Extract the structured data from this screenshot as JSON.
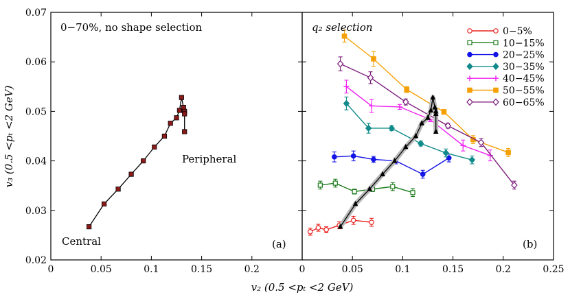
{
  "chart_data": [
    {
      "panel": "a",
      "type": "line",
      "panel_label": "(a)",
      "annotation": "0−70%, no shape selection",
      "text_labels": {
        "peripheral": "Peripheral",
        "central": "Central"
      },
      "xlim": [
        0,
        0.25
      ],
      "ylim": [
        0.02,
        0.07
      ],
      "series": [
        {
          "name": "no shape selection",
          "color": "#000000",
          "marker_color": "#8b1a1a",
          "x": [
            0.038,
            0.053,
            0.067,
            0.08,
            0.092,
            0.103,
            0.113,
            0.119,
            0.125,
            0.128,
            0.13,
            0.132,
            0.133,
            0.133,
            0.133
          ],
          "y": [
            0.0267,
            0.0313,
            0.0343,
            0.0373,
            0.04,
            0.0428,
            0.045,
            0.0476,
            0.0487,
            0.0502,
            0.0528,
            0.0508,
            0.05,
            0.0495,
            0.0459
          ]
        }
      ]
    },
    {
      "panel": "b",
      "type": "line",
      "panel_label": "(b)",
      "annotation": "q₂ selection",
      "xlim": [
        0,
        0.25
      ],
      "ylim": [
        0.02,
        0.07
      ],
      "xlabel": "v₂  (0.5 <pₜ <2 GeV)",
      "ylabel": "v₃  (0.5 <pₜ <2 GeV)",
      "x_ticks": [
        "0",
        "0.05",
        "0.1",
        "0.15",
        "0.2",
        "0.25"
      ],
      "y_ticks": [
        "0.02",
        "0.03",
        "0.04",
        "0.05",
        "0.06",
        "0.07"
      ],
      "legend_position": "top-right",
      "series": [
        {
          "name": "0−5%",
          "color": "#e8231f",
          "marker": "circle-open",
          "x": [
            0.008,
            0.016,
            0.024,
            0.037,
            0.051,
            0.069
          ],
          "y": [
            0.0257,
            0.0265,
            0.0261,
            0.027,
            0.028,
            0.0276
          ],
          "err": [
            0.0007,
            0.0007,
            0.0006,
            0.0007,
            0.0008,
            0.0008
          ]
        },
        {
          "name": "10−15%",
          "color": "#1a7a1a",
          "marker": "square-open",
          "x": [
            0.018,
            0.033,
            0.052,
            0.07,
            0.09,
            0.11
          ],
          "y": [
            0.0351,
            0.0355,
            0.0338,
            0.0343,
            0.0348,
            0.0336
          ],
          "err": [
            0.0008,
            0.0008,
            0.0005,
            0.0005,
            0.0008,
            0.0008
          ]
        },
        {
          "name": "20−25%",
          "color": "#1414e6",
          "marker": "circle-filled",
          "x": [
            0.032,
            0.051,
            0.071,
            0.093,
            0.12,
            0.146
          ],
          "y": [
            0.0408,
            0.041,
            0.0403,
            0.04,
            0.0373,
            0.0406
          ],
          "err": [
            0.001,
            0.001,
            0.0006,
            0.0006,
            0.0008,
            0.0008
          ]
        },
        {
          "name": "30−35%",
          "color": "#108a8a",
          "marker": "diamond-filled",
          "x": [
            0.044,
            0.066,
            0.089,
            0.118,
            0.143,
            0.169
          ],
          "y": [
            0.0516,
            0.0466,
            0.0466,
            0.0435,
            0.0416,
            0.0402
          ],
          "err": [
            0.0013,
            0.001,
            0.0005,
            0.0005,
            0.0008,
            0.0008
          ]
        },
        {
          "name": "40−45%",
          "color": "#f020f0",
          "marker": "plus",
          "x": [
            0.044,
            0.069,
            0.097,
            0.127,
            0.16,
            0.187
          ],
          "y": [
            0.055,
            0.0511,
            0.0509,
            0.0484,
            0.0431,
            0.0411
          ],
          "err": [
            0.0013,
            0.0013,
            0.0005,
            0.0005,
            0.0011,
            0.0011
          ]
        },
        {
          "name": "50−55%",
          "color": "#f5a006",
          "marker": "square-filled",
          "x": [
            0.042,
            0.071,
            0.104,
            0.141,
            0.17,
            0.205
          ],
          "y": [
            0.0652,
            0.0606,
            0.0544,
            0.0499,
            0.0443,
            0.0417
          ],
          "err": [
            0.0012,
            0.0015,
            0.0006,
            0.0005,
            0.0008,
            0.0008
          ]
        },
        {
          "name": "60−65%",
          "color": "#7b1c7b",
          "marker": "diamond-open",
          "x": [
            0.038,
            0.068,
            0.103,
            0.145,
            0.178,
            0.211
          ],
          "y": [
            0.0596,
            0.0568,
            0.0519,
            0.0471,
            0.0437,
            0.0351
          ],
          "err": [
            0.0014,
            0.0012,
            0.0006,
            0.0005,
            0.0008,
            0.0008
          ]
        },
        {
          "name": "no shape selection (overlay)",
          "color": "#000000",
          "marker": "triangle-filled",
          "band": true,
          "x": [
            0.038,
            0.053,
            0.067,
            0.08,
            0.092,
            0.103,
            0.113,
            0.119,
            0.125,
            0.128,
            0.13,
            0.132,
            0.133,
            0.133,
            0.133
          ],
          "y": [
            0.0267,
            0.0313,
            0.0343,
            0.0373,
            0.04,
            0.0428,
            0.045,
            0.0476,
            0.0487,
            0.0502,
            0.0528,
            0.0508,
            0.05,
            0.0495,
            0.0459
          ]
        }
      ]
    }
  ]
}
